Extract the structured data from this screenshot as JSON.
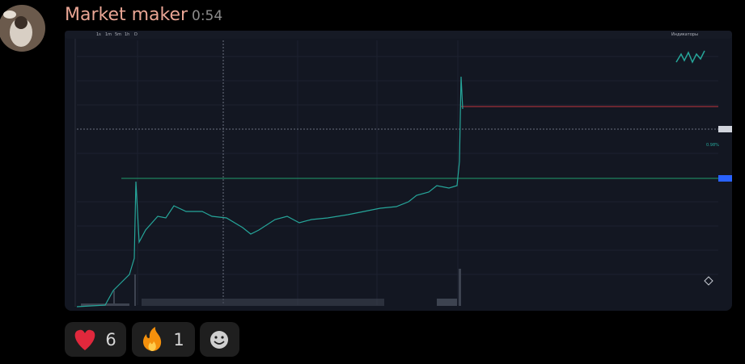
{
  "message": {
    "author": "Market maker",
    "time": "0:54"
  },
  "chart_toolbar": {
    "intervals": [
      "1s",
      "1m",
      "5m",
      "1h",
      "D"
    ],
    "indicators": "Индикаторы"
  },
  "chart_annotation": "0.98%",
  "reactions": [
    {
      "count": "6"
    },
    {
      "count": "1"
    }
  ]
}
